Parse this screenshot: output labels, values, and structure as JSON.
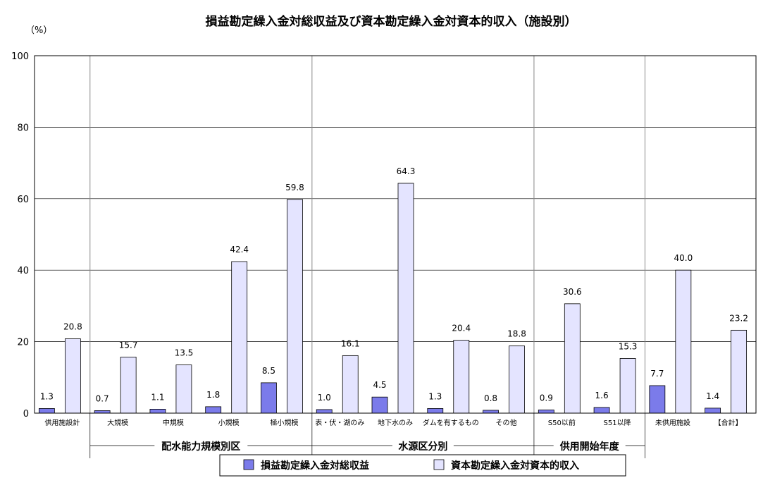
{
  "chart_data": {
    "type": "bar",
    "title": "損益勘定繰入金対総収益及び資本勘定繰入金対資本的収入（施設別）",
    "unit_label": "（%）",
    "ylim": [
      0,
      100
    ],
    "yticks": [
      0,
      20,
      40,
      60,
      80,
      100
    ],
    "grid": true,
    "legend_position": "bottom",
    "categories": [
      "供用施設計",
      "大規模",
      "中規模",
      "小規模",
      "極小規模",
      "表・伏・湖のみ",
      "地下水のみ",
      "ダムを有するもの",
      "その他",
      "S50以前",
      "S51以降",
      "未供用施設",
      "【合計】"
    ],
    "series": [
      {
        "name": "損益勘定繰入金対総収益",
        "color": "#7b7bea",
        "values": [
          1.3,
          0.7,
          1.1,
          1.8,
          8.5,
          1.0,
          4.5,
          1.3,
          0.8,
          0.9,
          1.6,
          7.7,
          1.4
        ]
      },
      {
        "name": "資本勘定繰入金対資本的収入",
        "color": "#e4e4ff",
        "values": [
          20.8,
          15.7,
          13.5,
          42.4,
          59.8,
          16.1,
          64.3,
          20.4,
          18.8,
          30.6,
          15.3,
          40.0,
          23.2
        ]
      }
    ],
    "value_labels": [
      [
        "1.3",
        "0.7",
        "1.1",
        "1.8",
        "8.5",
        "1.0",
        "4.5",
        "1.3",
        "0.8",
        "0.9",
        "1.6",
        "7.7",
        "1.4"
      ],
      [
        "20.8",
        "15.7",
        "13.5",
        "42.4",
        "59.8",
        "16.1",
        "64.3",
        "20.4",
        "18.8",
        "30.6",
        "15.3",
        "40.0",
        "23.2"
      ]
    ],
    "groups": [
      {
        "label": "配水能力規模別区",
        "start": 1,
        "end": 4
      },
      {
        "label": "水源区分別",
        "start": 5,
        "end": 8
      },
      {
        "label": "供用開始年度",
        "start": 9,
        "end": 10
      }
    ],
    "separators_after": [
      0,
      4,
      8,
      10
    ]
  }
}
